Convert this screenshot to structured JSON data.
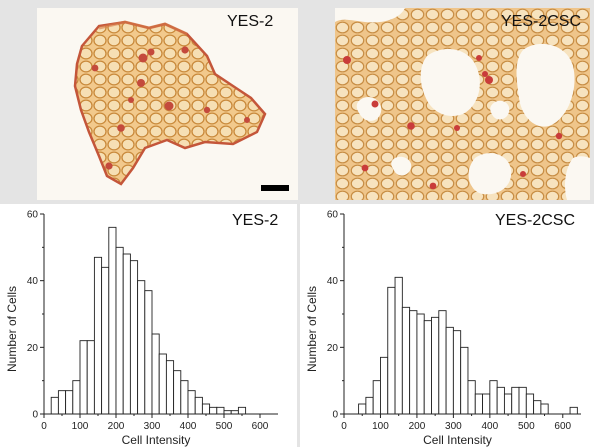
{
  "micrographs": [
    {
      "label": "YES-2",
      "has_scale_bar": true
    },
    {
      "label": "YES-2CSC",
      "has_scale_bar": false
    }
  ],
  "chart_data": [
    {
      "type": "bar",
      "title": "YES-2",
      "xlabel": "Cell Intensity",
      "ylabel": "Number of Cells",
      "xlim": [
        0,
        650
      ],
      "ylim": [
        0,
        60
      ],
      "xticks": [
        0,
        100,
        200,
        300,
        400,
        500,
        600
      ],
      "yticks": [
        0,
        20,
        40,
        60
      ],
      "bin_width": 20,
      "bin_starts": [
        20,
        40,
        60,
        80,
        100,
        120,
        140,
        160,
        180,
        200,
        220,
        240,
        260,
        280,
        300,
        320,
        340,
        360,
        380,
        400,
        420,
        440,
        460,
        480,
        500,
        520,
        540
      ],
      "values": [
        5,
        7,
        7,
        10,
        22,
        22,
        47,
        44,
        56,
        50,
        48,
        46,
        40,
        37,
        24,
        18,
        16,
        13,
        10,
        7,
        5,
        3,
        2,
        2,
        1,
        1,
        2
      ]
    },
    {
      "type": "bar",
      "title": "YES-2CSC",
      "xlabel": "Cell Intensity",
      "ylabel": "Number of Cells",
      "xlim": [
        0,
        650
      ],
      "ylim": [
        0,
        60
      ],
      "xticks": [
        0,
        100,
        200,
        300,
        400,
        500,
        600
      ],
      "yticks": [
        0,
        20,
        40,
        60
      ],
      "bin_width": 20,
      "bin_starts": [
        40,
        60,
        80,
        100,
        120,
        140,
        160,
        180,
        200,
        220,
        240,
        260,
        280,
        300,
        320,
        340,
        360,
        380,
        400,
        420,
        440,
        460,
        480,
        500,
        520,
        540,
        620
      ],
      "values": [
        3,
        5,
        10,
        17,
        38,
        41,
        32,
        31,
        30,
        28,
        29,
        31,
        26,
        25,
        20,
        10,
        6,
        6,
        10,
        8,
        6,
        8,
        8,
        6,
        4,
        3,
        2
      ]
    }
  ]
}
